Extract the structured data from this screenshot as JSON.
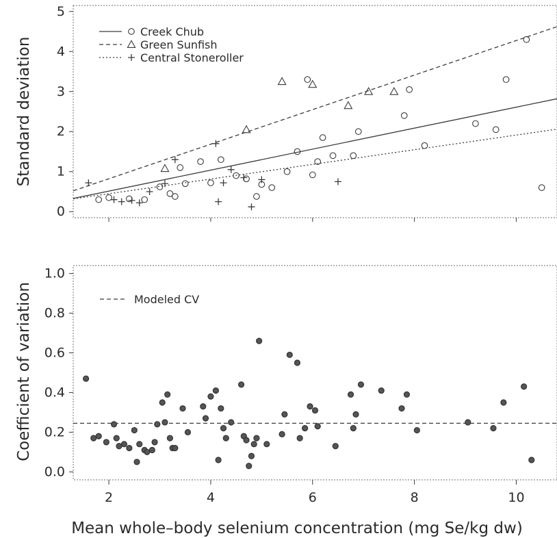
{
  "chart_data": [
    {
      "type": "scatter",
      "panel": "top",
      "ylabel": "Standard deviation",
      "xlim": [
        1.3,
        10.8
      ],
      "ylim": [
        -0.15,
        5.15
      ],
      "yticks": [
        "0",
        "1",
        "2",
        "3",
        "4",
        "5"
      ],
      "legend": {
        "placement": "top-left",
        "entries": [
          "Creek Chub",
          "Green Sunfish",
          "Central Stoneroller"
        ]
      },
      "series": [
        {
          "name": "Creek Chub",
          "marker": "circle",
          "line": {
            "x": [
              1.3,
              10.8
            ],
            "y": [
              0.33,
              2.82
            ],
            "style": "solid"
          },
          "points": [
            [
              1.8,
              0.3
            ],
            [
              2.0,
              0.35
            ],
            [
              2.4,
              0.32
            ],
            [
              2.7,
              0.3
            ],
            [
              3.0,
              0.62
            ],
            [
              3.2,
              0.45
            ],
            [
              3.3,
              0.38
            ],
            [
              3.4,
              1.1
            ],
            [
              3.5,
              0.7
            ],
            [
              3.8,
              1.25
            ],
            [
              4.0,
              0.72
            ],
            [
              4.2,
              1.3
            ],
            [
              4.5,
              0.9
            ],
            [
              4.7,
              0.82
            ],
            [
              4.9,
              0.38
            ],
            [
              5.0,
              0.68
            ],
            [
              5.2,
              0.6
            ],
            [
              5.5,
              1.0
            ],
            [
              5.7,
              1.5
            ],
            [
              5.9,
              3.3
            ],
            [
              6.0,
              0.92
            ],
            [
              6.1,
              1.25
            ],
            [
              6.2,
              1.85
            ],
            [
              6.4,
              1.4
            ],
            [
              6.8,
              1.4
            ],
            [
              6.9,
              2.0
            ],
            [
              7.8,
              2.4
            ],
            [
              7.9,
              3.05
            ],
            [
              8.2,
              1.65
            ],
            [
              9.2,
              2.2
            ],
            [
              9.6,
              2.05
            ],
            [
              9.8,
              3.3
            ],
            [
              10.2,
              4.3
            ],
            [
              10.5,
              0.6
            ]
          ]
        },
        {
          "name": "Green Sunfish",
          "marker": "triangle",
          "line": {
            "x": [
              1.3,
              10.8
            ],
            "y": [
              0.52,
              4.62
            ],
            "style": "dashed"
          },
          "points": [
            [
              3.1,
              1.08
            ],
            [
              4.7,
              2.05
            ],
            [
              5.4,
              3.25
            ],
            [
              6.0,
              3.18
            ],
            [
              6.7,
              2.65
            ],
            [
              7.1,
              3.0
            ],
            [
              7.6,
              3.0
            ]
          ]
        },
        {
          "name": "Central Stoneroller",
          "marker": "plus",
          "line": {
            "x": [
              1.3,
              10.8
            ],
            "y": [
              0.32,
              2.06
            ],
            "style": "dotted"
          },
          "points": [
            [
              1.6,
              0.72
            ],
            [
              2.1,
              0.3
            ],
            [
              2.25,
              0.25
            ],
            [
              2.45,
              0.28
            ],
            [
              2.6,
              0.22
            ],
            [
              2.8,
              0.5
            ],
            [
              3.1,
              0.7
            ],
            [
              3.3,
              1.3
            ],
            [
              4.1,
              1.7
            ],
            [
              4.15,
              0.25
            ],
            [
              4.25,
              0.72
            ],
            [
              4.4,
              1.05
            ],
            [
              4.65,
              0.85
            ],
            [
              4.8,
              0.12
            ],
            [
              5.0,
              0.8
            ],
            [
              6.5,
              0.75
            ]
          ]
        }
      ]
    },
    {
      "type": "scatter",
      "panel": "bottom",
      "ylabel": "Coefficient of variation",
      "xlabel": "Mean whole–body selenium concentration (mg Se/kg dw)",
      "xlim": [
        1.3,
        10.8
      ],
      "ylim": [
        -0.04,
        1.04
      ],
      "xticks": [
        "2",
        "4",
        "6",
        "8",
        "10"
      ],
      "yticks": [
        "0.0",
        "0.2",
        "0.4",
        "0.6",
        "0.8",
        "1.0"
      ],
      "legend": {
        "placement": "top-left",
        "entries": [
          "Modeled CV"
        ]
      },
      "reference_line": {
        "name": "Modeled CV",
        "y": 0.245,
        "style": "dashed"
      },
      "points": [
        [
          1.55,
          0.47
        ],
        [
          1.7,
          0.17
        ],
        [
          1.8,
          0.18
        ],
        [
          1.95,
          0.15
        ],
        [
          2.1,
          0.24
        ],
        [
          2.15,
          0.17
        ],
        [
          2.2,
          0.13
        ],
        [
          2.3,
          0.14
        ],
        [
          2.4,
          0.12
        ],
        [
          2.5,
          0.21
        ],
        [
          2.55,
          0.05
        ],
        [
          2.6,
          0.14
        ],
        [
          2.7,
          0.11
        ],
        [
          2.75,
          0.1
        ],
        [
          2.85,
          0.11
        ],
        [
          2.9,
          0.15
        ],
        [
          2.95,
          0.24
        ],
        [
          3.05,
          0.35
        ],
        [
          3.1,
          0.25
        ],
        [
          3.15,
          0.39
        ],
        [
          3.2,
          0.17
        ],
        [
          3.25,
          0.12
        ],
        [
          3.3,
          0.12
        ],
        [
          3.45,
          0.32
        ],
        [
          3.55,
          0.2
        ],
        [
          3.85,
          0.33
        ],
        [
          3.9,
          0.27
        ],
        [
          4.0,
          0.38
        ],
        [
          4.1,
          0.41
        ],
        [
          4.15,
          0.06
        ],
        [
          4.2,
          0.32
        ],
        [
          4.25,
          0.22
        ],
        [
          4.3,
          0.17
        ],
        [
          4.4,
          0.25
        ],
        [
          4.6,
          0.44
        ],
        [
          4.65,
          0.18
        ],
        [
          4.7,
          0.16
        ],
        [
          4.75,
          0.03
        ],
        [
          4.8,
          0.08
        ],
        [
          4.85,
          0.14
        ],
        [
          4.9,
          0.17
        ],
        [
          4.95,
          0.66
        ],
        [
          5.1,
          0.14
        ],
        [
          5.4,
          0.19
        ],
        [
          5.45,
          0.29
        ],
        [
          5.55,
          0.59
        ],
        [
          5.7,
          0.55
        ],
        [
          5.75,
          0.17
        ],
        [
          5.85,
          0.22
        ],
        [
          5.95,
          0.33
        ],
        [
          6.05,
          0.31
        ],
        [
          6.1,
          0.23
        ],
        [
          6.45,
          0.13
        ],
        [
          6.75,
          0.39
        ],
        [
          6.8,
          0.22
        ],
        [
          6.85,
          0.29
        ],
        [
          6.95,
          0.44
        ],
        [
          7.35,
          0.41
        ],
        [
          7.75,
          0.32
        ],
        [
          7.85,
          0.39
        ],
        [
          8.05,
          0.21
        ],
        [
          9.05,
          0.25
        ],
        [
          9.55,
          0.22
        ],
        [
          9.75,
          0.35
        ],
        [
          10.15,
          0.43
        ],
        [
          10.3,
          0.06
        ]
      ]
    }
  ]
}
